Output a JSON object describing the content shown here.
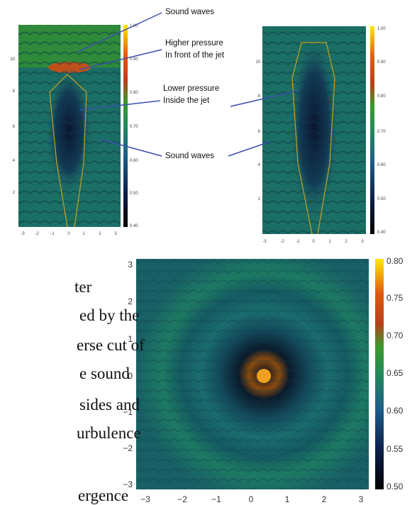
{
  "annotations": [
    {
      "lines": [
        "Sound waves"
      ]
    },
    {
      "lines": [
        "Higher pressure",
        "In front of the jet"
      ]
    },
    {
      "lines": [
        "Lower pressure",
        "Inside the jet"
      ]
    },
    {
      "lines": [
        "Sound waves"
      ]
    }
  ],
  "body_text": [
    "ter",
    "ed by the",
    "erse cut of",
    "e sound",
    "sides  and",
    "urbulence",
    "ergence"
  ],
  "panels": [
    {
      "y_ticks": [
        "10",
        "8",
        "6",
        "4",
        "2"
      ],
      "x_ticks": [
        "-3",
        "-2",
        "-1",
        "0",
        "1",
        "2",
        "3"
      ],
      "colorbar_ticks": [
        "1.00",
        "0.90",
        "0.80",
        "0.70",
        "0.60",
        "0.50",
        "0.40"
      ]
    },
    {
      "y_ticks": [
        "10",
        "8",
        "6",
        "4",
        "2"
      ],
      "x_ticks": [
        "-3",
        "-2",
        "-1",
        "0",
        "1",
        "2",
        "3"
      ],
      "colorbar_ticks": [
        "1.00",
        "0.90",
        "0.80",
        "0.70",
        "0.60",
        "0.50",
        "0.40"
      ]
    },
    {
      "y_ticks": [
        "3",
        "2",
        "1",
        "0",
        "−1",
        "−2",
        "−3"
      ],
      "x_ticks": [
        "−3",
        "−2",
        "−1",
        "0",
        "1",
        "2",
        "3"
      ],
      "colorbar_ticks": [
        "0.80",
        "0.75",
        "0.70",
        "0.65",
        "0.60",
        "0.55",
        "0.50"
      ]
    }
  ]
}
